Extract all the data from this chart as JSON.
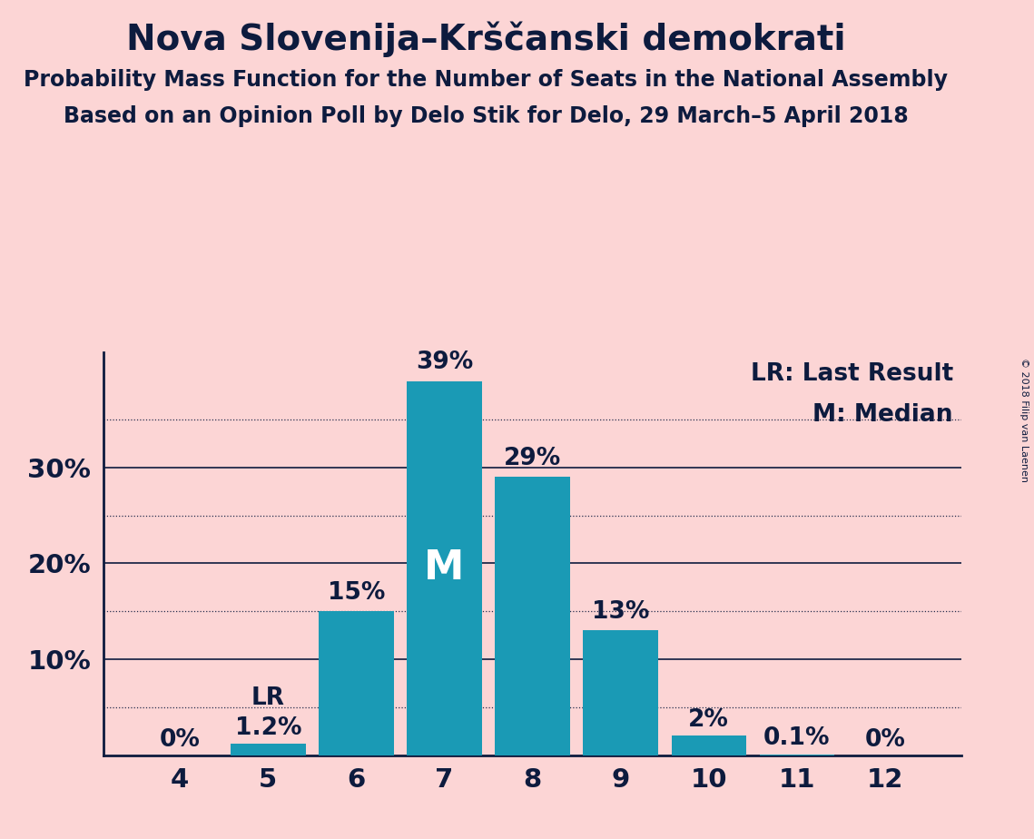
{
  "title": "Nova Slovenija–Krščanski demokrati",
  "subtitle1": "Probability Mass Function for the Number of Seats in the National Assembly",
  "subtitle2": "Based on an Opinion Poll by Delo Stik for Delo, 29 March–5 April 2018",
  "copyright": "© 2018 Filip van Laenen",
  "categories": [
    4,
    5,
    6,
    7,
    8,
    9,
    10,
    11,
    12
  ],
  "values": [
    0.0,
    1.2,
    15.0,
    39.0,
    29.0,
    13.0,
    2.0,
    0.1,
    0.0
  ],
  "bar_color": "#1a9ab5",
  "background_color": "#fcd5d5",
  "text_color": "#0d1b3e",
  "bar_labels": [
    "0%",
    "1.2%",
    "15%",
    "39%",
    "29%",
    "13%",
    "2%",
    "0.1%",
    "0%"
  ],
  "median_bar_index": 3,
  "lr_bar_index": 1,
  "median_label": "M",
  "lr_label": "LR",
  "lr_legend": "LR: Last Result",
  "m_legend": "M: Median",
  "ylim": [
    0,
    42
  ],
  "yticks_solid": [
    10,
    20,
    30
  ],
  "yticks_dotted": [
    5,
    15,
    25,
    35
  ],
  "ytick_labels": {
    "10": "10%",
    "20": "20%",
    "30": "30%"
  },
  "grid_color": "#0d1b3e",
  "axis_color": "#0d1b3e",
  "title_fontsize": 28,
  "subtitle_fontsize": 17,
  "bar_label_fontsize": 19,
  "axis_tick_fontsize": 21,
  "legend_fontsize": 19,
  "median_label_fontsize": 32
}
